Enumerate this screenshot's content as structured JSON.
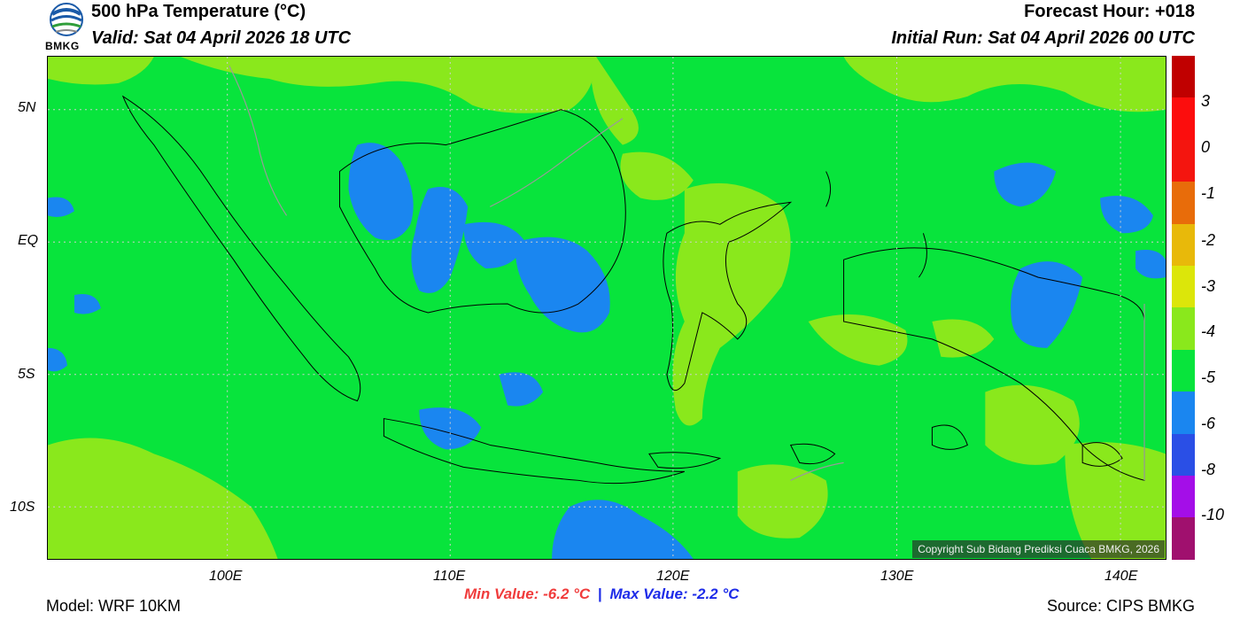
{
  "header": {
    "logo_text": "BMKG",
    "title": "500 hPa Temperature (°C)",
    "valid": "Valid: Sat 04 April 2026 18 UTC",
    "forecast_hour": "Forecast Hour: +018",
    "initial_run": "Initial Run: Sat 04 April 2026 00 UTC"
  },
  "map": {
    "lat_labels": [
      "5N",
      "EQ",
      "5S",
      "10S"
    ],
    "lon_labels": [
      "100E",
      "110E",
      "120E",
      "130E",
      "140E"
    ],
    "copyright": "Copyright Sub Bidang Prediksi Cuaca BMKG, 2026",
    "colors": {
      "base_green": "#08e43c",
      "light_green": "#8ae81c",
      "blue": "#1a86f0",
      "coast": "#000000",
      "border": "#9a9a9a"
    }
  },
  "colorbar": {
    "levels": [
      {
        "color": "#c00000"
      },
      {
        "color": "#fc0d0d"
      },
      {
        "color": "#f4150f"
      },
      {
        "color": "#e86c0a"
      },
      {
        "color": "#e8b90a"
      },
      {
        "color": "#dce60a"
      },
      {
        "color": "#8ae81c"
      },
      {
        "color": "#08e43c"
      },
      {
        "color": "#1a86f0"
      },
      {
        "color": "#2a4fe6"
      },
      {
        "color": "#a40ee8"
      },
      {
        "color": "#a0106e"
      }
    ],
    "labels": [
      "3",
      "0",
      "-1",
      "-2",
      "-3",
      "-4",
      "-5",
      "-6",
      "-8",
      "-10"
    ]
  },
  "stats": {
    "min": "Min Value: -6.2 °C",
    "separator": "|",
    "max": "Max Value: -2.2 °C"
  },
  "footer": {
    "model": "Model: WRF 10KM",
    "source": "Source: CIPS BMKG"
  }
}
